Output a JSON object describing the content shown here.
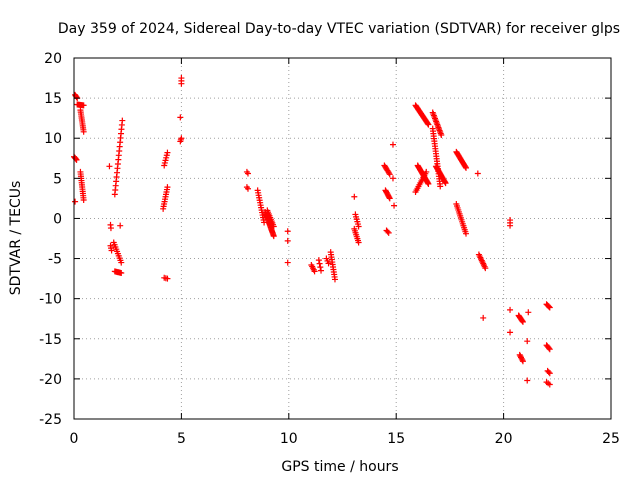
{
  "chart_data": {
    "type": "scatter",
    "title": "Day 359 of 2024, Sidereal Day-to-day VTEC variation (SDTVAR) for receiver glps",
    "xlabel": "GPS time / hours",
    "ylabel": "SDTVAR / TECUs",
    "xlim": [
      0,
      25
    ],
    "ylim": [
      -25,
      20
    ],
    "xticks": [
      0,
      5,
      10,
      15,
      20,
      25
    ],
    "yticks": [
      -25,
      -20,
      -15,
      -10,
      -5,
      0,
      5,
      10,
      15,
      20
    ],
    "grid": true,
    "marker": "+",
    "series": [
      {
        "name": "SDTVAR",
        "color": "#ff0000",
        "segments": [
          {
            "x0": 0.05,
            "y0": 15.4,
            "x1": 0.15,
            "y1": 15.0,
            "n": 4
          },
          {
            "x0": 0.15,
            "y0": 14.2,
            "x1": 0.45,
            "y1": 14.1,
            "n": 8
          },
          {
            "x0": 0.3,
            "y0": 13.5,
            "x1": 0.45,
            "y1": 10.8,
            "n": 12
          },
          {
            "x0": 0.0,
            "y0": 7.7,
            "x1": 0.12,
            "y1": 7.3,
            "n": 5
          },
          {
            "x0": 0.3,
            "y0": 5.8,
            "x1": 0.45,
            "y1": 2.3,
            "n": 14
          },
          {
            "x0": 0.05,
            "y0": 2.1,
            "x1": 0.05,
            "y1": 2.1,
            "n": 1
          },
          {
            "x0": 1.65,
            "y0": 6.5,
            "x1": 1.65,
            "y1": 6.5,
            "n": 1
          },
          {
            "x0": 1.7,
            "y0": -0.8,
            "x1": 1.72,
            "y1": -1.2,
            "n": 2
          },
          {
            "x0": 1.7,
            "y0": -3.4,
            "x1": 1.75,
            "y1": -4.0,
            "n": 3
          },
          {
            "x0": 1.9,
            "y0": 3.0,
            "x1": 2.25,
            "y1": 12.2,
            "n": 18
          },
          {
            "x0": 1.85,
            "y0": -3.0,
            "x1": 2.2,
            "y1": -5.5,
            "n": 10
          },
          {
            "x0": 1.9,
            "y0": -6.6,
            "x1": 2.2,
            "y1": -6.8,
            "n": 8
          },
          {
            "x0": 2.15,
            "y0": -0.9,
            "x1": 2.15,
            "y1": -0.9,
            "n": 1
          },
          {
            "x0": 4.15,
            "y0": 1.2,
            "x1": 4.35,
            "y1": 3.9,
            "n": 10
          },
          {
            "x0": 4.2,
            "y0": 6.6,
            "x1": 4.35,
            "y1": 8.2,
            "n": 6
          },
          {
            "x0": 4.2,
            "y0": -7.4,
            "x1": 4.35,
            "y1": -7.5,
            "n": 3
          },
          {
            "x0": 4.95,
            "y0": 9.6,
            "x1": 5.0,
            "y1": 10.0,
            "n": 3
          },
          {
            "x0": 4.95,
            "y0": 12.6,
            "x1": 4.95,
            "y1": 12.6,
            "n": 1
          },
          {
            "x0": 5.0,
            "y0": 16.8,
            "x1": 5.0,
            "y1": 17.5,
            "n": 3
          },
          {
            "x0": 8.05,
            "y0": 5.8,
            "x1": 8.1,
            "y1": 5.6,
            "n": 2
          },
          {
            "x0": 8.05,
            "y0": 3.9,
            "x1": 8.1,
            "y1": 3.7,
            "n": 2
          },
          {
            "x0": 8.55,
            "y0": 3.5,
            "x1": 8.85,
            "y1": -0.5,
            "n": 14
          },
          {
            "x0": 8.9,
            "y0": 0.8,
            "x1": 9.3,
            "y1": -2.2,
            "n": 22
          },
          {
            "x0": 9.0,
            "y0": 1.0,
            "x1": 9.3,
            "y1": -1.0,
            "n": 10
          },
          {
            "x0": 9.95,
            "y0": -1.6,
            "x1": 9.95,
            "y1": -2.8,
            "n": 2
          },
          {
            "x0": 9.95,
            "y0": -5.5,
            "x1": 9.95,
            "y1": -5.5,
            "n": 1
          },
          {
            "x0": 11.05,
            "y0": -5.8,
            "x1": 11.2,
            "y1": -6.6,
            "n": 5
          },
          {
            "x0": 11.4,
            "y0": -5.2,
            "x1": 11.5,
            "y1": -6.5,
            "n": 4
          },
          {
            "x0": 11.75,
            "y0": -5.0,
            "x1": 11.85,
            "y1": -5.6,
            "n": 3
          },
          {
            "x0": 11.95,
            "y0": -4.2,
            "x1": 12.15,
            "y1": -7.6,
            "n": 12
          },
          {
            "x0": 13.05,
            "y0": 2.7,
            "x1": 13.05,
            "y1": 2.7,
            "n": 1
          },
          {
            "x0": 13.05,
            "y0": -1.3,
            "x1": 13.25,
            "y1": -3.0,
            "n": 8
          },
          {
            "x0": 13.1,
            "y0": 0.5,
            "x1": 13.25,
            "y1": -1.0,
            "n": 6
          },
          {
            "x0": 14.45,
            "y0": 6.6,
            "x1": 14.7,
            "y1": 5.5,
            "n": 8
          },
          {
            "x0": 14.5,
            "y0": 3.5,
            "x1": 14.7,
            "y1": 2.5,
            "n": 8
          },
          {
            "x0": 14.55,
            "y0": -1.5,
            "x1": 14.65,
            "y1": -1.8,
            "n": 3
          },
          {
            "x0": 14.85,
            "y0": 9.2,
            "x1": 14.85,
            "y1": 9.2,
            "n": 1
          },
          {
            "x0": 14.85,
            "y0": 5.0,
            "x1": 14.85,
            "y1": 5.0,
            "n": 1
          },
          {
            "x0": 14.9,
            "y0": 1.6,
            "x1": 14.9,
            "y1": 1.6,
            "n": 1
          },
          {
            "x0": 15.9,
            "y0": 14.1,
            "x1": 16.5,
            "y1": 11.7,
            "n": 22
          },
          {
            "x0": 16.0,
            "y0": 6.6,
            "x1": 16.5,
            "y1": 4.3,
            "n": 20
          },
          {
            "x0": 15.9,
            "y0": 3.3,
            "x1": 16.4,
            "y1": 5.8,
            "n": 12
          },
          {
            "x0": 16.7,
            "y0": 13.2,
            "x1": 17.1,
            "y1": 10.4,
            "n": 16
          },
          {
            "x0": 16.7,
            "y0": 11.2,
            "x1": 17.05,
            "y1": 4.0,
            "n": 24
          },
          {
            "x0": 16.85,
            "y0": 6.5,
            "x1": 17.3,
            "y1": 4.4,
            "n": 18
          },
          {
            "x0": 17.8,
            "y0": 8.3,
            "x1": 18.25,
            "y1": 6.3,
            "n": 16
          },
          {
            "x0": 17.8,
            "y0": 1.8,
            "x1": 18.25,
            "y1": -1.9,
            "n": 16
          },
          {
            "x0": 18.85,
            "y0": -4.5,
            "x1": 19.15,
            "y1": -6.2,
            "n": 10
          },
          {
            "x0": 18.8,
            "y0": 5.6,
            "x1": 18.8,
            "y1": 5.6,
            "n": 1
          },
          {
            "x0": 19.05,
            "y0": -12.4,
            "x1": 19.05,
            "y1": -12.4,
            "n": 1
          },
          {
            "x0": 20.3,
            "y0": -0.2,
            "x1": 20.3,
            "y1": -0.9,
            "n": 3
          },
          {
            "x0": 20.3,
            "y0": -11.4,
            "x1": 20.3,
            "y1": -11.4,
            "n": 1
          },
          {
            "x0": 20.3,
            "y0": -14.2,
            "x1": 20.3,
            "y1": -14.2,
            "n": 1
          },
          {
            "x0": 20.7,
            "y0": -12.1,
            "x1": 20.9,
            "y1": -12.9,
            "n": 8
          },
          {
            "x0": 20.75,
            "y0": -17.0,
            "x1": 20.9,
            "y1": -17.8,
            "n": 6
          },
          {
            "x0": 21.15,
            "y0": -11.7,
            "x1": 21.15,
            "y1": -11.7,
            "n": 1
          },
          {
            "x0": 21.1,
            "y0": -15.3,
            "x1": 21.1,
            "y1": -15.3,
            "n": 1
          },
          {
            "x0": 21.1,
            "y0": -20.2,
            "x1": 21.1,
            "y1": -20.2,
            "n": 1
          },
          {
            "x0": 22.0,
            "y0": -10.7,
            "x1": 22.15,
            "y1": -11.1,
            "n": 5
          },
          {
            "x0": 22.0,
            "y0": -15.8,
            "x1": 22.15,
            "y1": -16.3,
            "n": 5
          },
          {
            "x0": 22.05,
            "y0": -19.0,
            "x1": 22.15,
            "y1": -19.3,
            "n": 3
          },
          {
            "x0": 22.0,
            "y0": -20.4,
            "x1": 22.15,
            "y1": -20.7,
            "n": 3
          }
        ]
      }
    ]
  }
}
